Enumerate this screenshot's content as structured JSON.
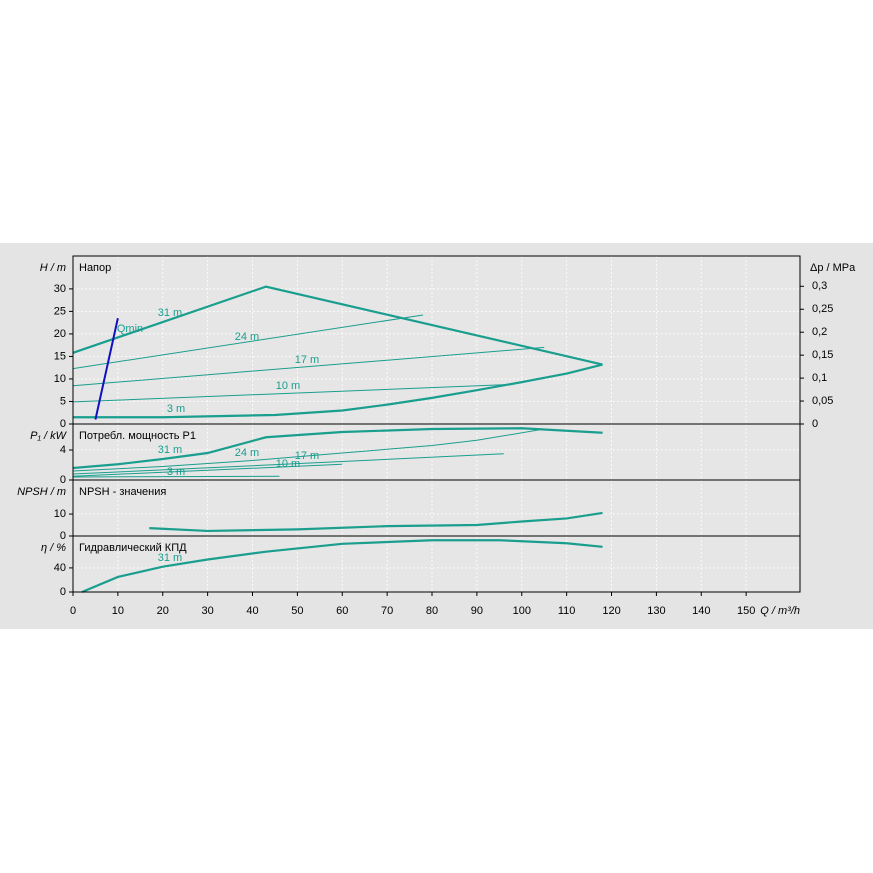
{
  "chart_data": [
    {
      "type": "line",
      "title": "Напор",
      "ylabel": "H / m",
      "y2label": "Δp / MPa",
      "xlim": [
        0,
        162
      ],
      "ylim": [
        0,
        37.3
      ],
      "yticks": [
        0,
        5,
        10,
        15,
        20,
        25,
        30
      ],
      "y2lim": [
        0,
        0.366
      ],
      "y2ticks": [
        0,
        {
          "value": 0.05,
          "label": "0,05"
        },
        {
          "value": 0.1,
          "label": "0,1"
        },
        {
          "value": 0.15,
          "label": "0,15"
        },
        {
          "value": 0.2,
          "label": "0,2"
        },
        {
          "value": 0.25,
          "label": "0,25"
        },
        {
          "value": 0.3,
          "label": "0,3"
        }
      ],
      "grid": true,
      "series": [
        {
          "name": "31 m",
          "color": "#1a9e8e",
          "x": [
            0,
            43,
            118
          ],
          "values": [
            15.8,
            30.5,
            13.2
          ]
        },
        {
          "name": "24 m",
          "color": "#1a9e8e",
          "x": [
            0,
            78
          ],
          "values": [
            12.3,
            24.2
          ]
        },
        {
          "name": "17 m",
          "color": "#1a9e8e",
          "x": [
            0,
            105
          ],
          "values": [
            8.5,
            17
          ]
        },
        {
          "name": "10 m",
          "color": "#1a9e8e",
          "x": [
            0,
            98
          ],
          "values": [
            4.9,
            8.8
          ]
        },
        {
          "name": "3 m",
          "color": "#1a9e8e",
          "x": [
            0,
            20,
            45,
            60,
            70,
            80,
            90,
            100,
            110,
            118
          ],
          "values": [
            1.5,
            1.5,
            2,
            3,
            4.3,
            5.8,
            7.5,
            9.3,
            11.2,
            13.2
          ]
        },
        {
          "name": "Qmin",
          "color": "#1010c0",
          "x": [
            5,
            10
          ],
          "values": [
            1,
            23.5
          ]
        }
      ]
    },
    {
      "type": "line",
      "title": "Потребл. мощность P1",
      "ylabel": "P₁ / kW",
      "xlim": [
        0,
        162
      ],
      "ylim": [
        0,
        7.47
      ],
      "yticks": [
        0,
        4
      ],
      "grid": true,
      "series": [
        {
          "name": "31 m",
          "color": "#1a9e8e",
          "x": [
            0,
            10,
            20,
            30,
            43,
            60,
            80,
            100,
            118
          ],
          "values": [
            1.6,
            2.1,
            2.8,
            3.6,
            5.7,
            6.4,
            6.8,
            6.9,
            6.3
          ]
        },
        {
          "name": "24 m",
          "color": "#1a9e8e",
          "x": [
            0,
            20,
            40,
            60,
            80,
            90,
            104
          ],
          "values": [
            1.2,
            1.8,
            2.6,
            3.6,
            4.6,
            5.3,
            6.7
          ]
        },
        {
          "name": "17 m",
          "color": "#1a9e8e",
          "x": [
            0,
            40,
            96
          ],
          "values": [
            0.8,
            1.9,
            3.5
          ]
        },
        {
          "name": "10 m",
          "color": "#1a9e8e",
          "x": [
            0,
            60
          ],
          "values": [
            0.5,
            2.1
          ]
        },
        {
          "name": "3 m",
          "color": "#1a9e8e",
          "x": [
            0,
            46
          ],
          "values": [
            0.4,
            0.5
          ]
        }
      ]
    },
    {
      "type": "line",
      "title": "NPSH - значения",
      "ylabel": "NPSH / m",
      "xlim": [
        0,
        162
      ],
      "ylim": [
        0,
        25.5
      ],
      "yticks": [
        0,
        10
      ],
      "grid": true,
      "series": [
        {
          "color": "#1a9e8e",
          "x": [
            17,
            30,
            50,
            70,
            90,
            100,
            110,
            118
          ],
          "values": [
            3.6,
            2.3,
            3,
            4.5,
            5,
            6.6,
            8,
            10.5
          ]
        }
      ]
    },
    {
      "type": "line",
      "title": "Гидравлический КПД",
      "ylabel": "η / %",
      "xlabel": "Q / m³/h",
      "xlim": [
        0,
        162
      ],
      "ylim": [
        0,
        93
      ],
      "yticks": [
        0,
        40
      ],
      "xticks": [
        0,
        10,
        20,
        30,
        40,
        50,
        60,
        70,
        80,
        90,
        100,
        110,
        120,
        130,
        140,
        150
      ],
      "grid": true,
      "series": [
        {
          "name": "31 m",
          "color": "#1a9e8e",
          "x": [
            2,
            10,
            20,
            30,
            43,
            60,
            80,
            95,
            110,
            118
          ],
          "values": [
            0,
            25,
            42,
            54,
            67,
            80,
            86,
            86,
            81,
            75
          ]
        }
      ]
    }
  ]
}
